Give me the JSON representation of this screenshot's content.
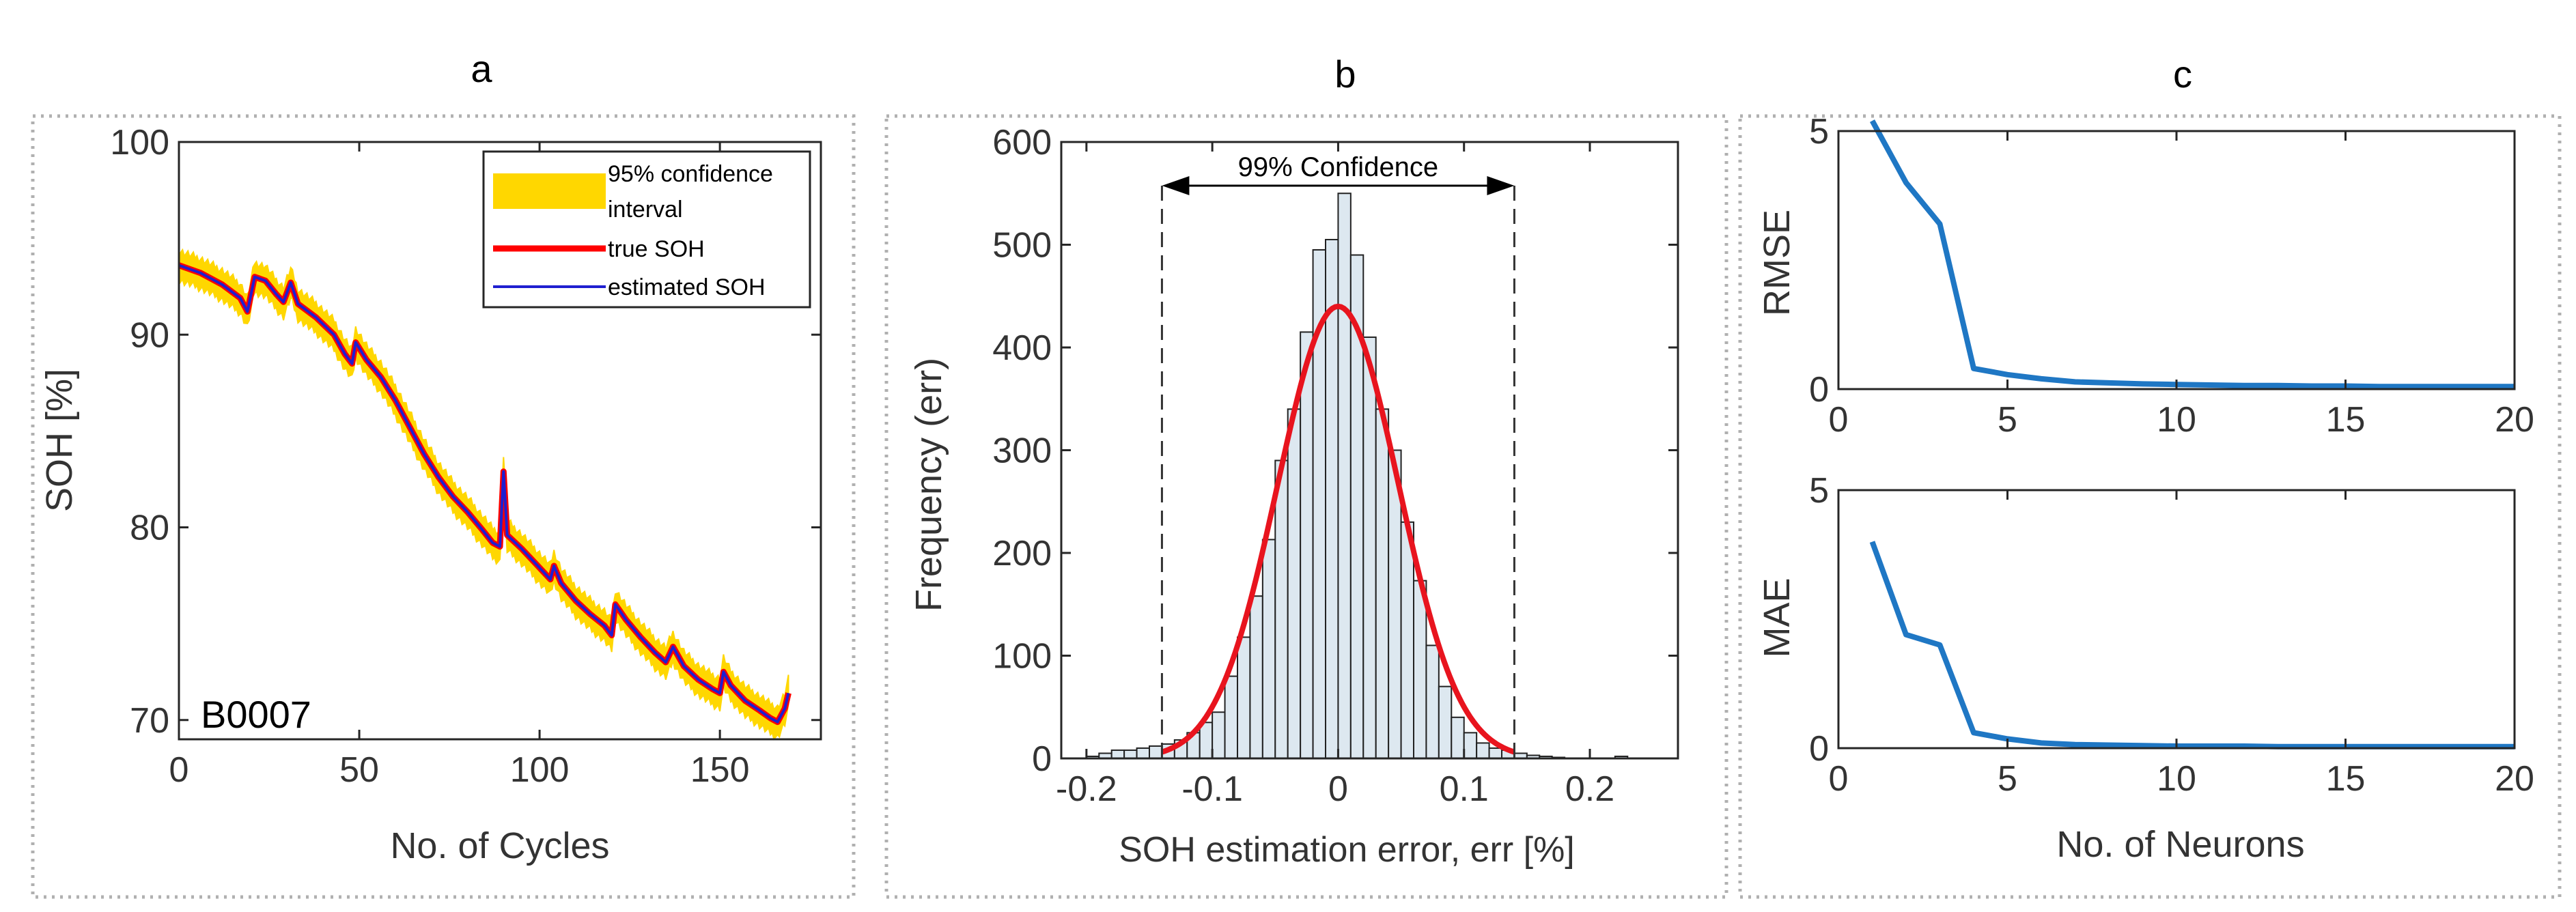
{
  "colors": {
    "confidence_band": "#FFD700",
    "true_soh": "#FF0000",
    "estimated_soh": "#1F1FD0",
    "histogram_fill": "#DDE8F0",
    "gauss_fit": "#E8141E",
    "neuron_line": "#1F77C4",
    "panel_border": "#B0B0B0"
  },
  "panels": {
    "a": {
      "label": "a",
      "battery_id": "B0007"
    },
    "b": {
      "label": "b",
      "annotation": "99% Confidence"
    },
    "c": {
      "label": "c"
    }
  },
  "chart_data": [
    {
      "id": "soh-vs-cycles",
      "type": "line",
      "xlabel": "No. of Cycles",
      "ylabel": "SOH [%]",
      "xlim": [
        0,
        178
      ],
      "ylim": [
        69,
        100
      ],
      "xticks": [
        0,
        50,
        100,
        150
      ],
      "yticks": [
        70,
        80,
        90,
        100
      ],
      "legend_position": "top-right",
      "legend": [
        "95% confidence",
        "interval",
        "true SOH",
        "estimated SOH"
      ],
      "confidence_halfwidth": 0.9,
      "series": [
        {
          "name": "true SOH",
          "points": [
            [
              0,
              93.6
            ],
            [
              6,
              93.2
            ],
            [
              12,
              92.6
            ],
            [
              17,
              91.9
            ],
            [
              19,
              91.2
            ],
            [
              21,
              93.0
            ],
            [
              24,
              92.8
            ],
            [
              27,
              92.1
            ],
            [
              29,
              91.7
            ],
            [
              31,
              92.7
            ],
            [
              33,
              91.6
            ],
            [
              38,
              90.9
            ],
            [
              43,
              90.0
            ],
            [
              46,
              89.0
            ],
            [
              48,
              88.5
            ],
            [
              49,
              89.6
            ],
            [
              52,
              88.7
            ],
            [
              56,
              87.8
            ],
            [
              60,
              86.6
            ],
            [
              64,
              85.2
            ],
            [
              68,
              83.8
            ],
            [
              72,
              82.6
            ],
            [
              76,
              81.6
            ],
            [
              80,
              80.8
            ],
            [
              84,
              79.9
            ],
            [
              87,
              79.2
            ],
            [
              89,
              79.0
            ],
            [
              90,
              82.9
            ],
            [
              91,
              79.6
            ],
            [
              95,
              78.9
            ],
            [
              99,
              78.1
            ],
            [
              103,
              77.3
            ],
            [
              104,
              78.0
            ],
            [
              106,
              77.1
            ],
            [
              110,
              76.2
            ],
            [
              114,
              75.5
            ],
            [
              118,
              74.9
            ],
            [
              120,
              74.4
            ],
            [
              121,
              76.0
            ],
            [
              124,
              75.2
            ],
            [
              128,
              74.3
            ],
            [
              132,
              73.5
            ],
            [
              135,
              73.0
            ],
            [
              137,
              73.8
            ],
            [
              140,
              72.8
            ],
            [
              144,
              72.1
            ],
            [
              148,
              71.6
            ],
            [
              150,
              71.4
            ],
            [
              151,
              72.5
            ],
            [
              153,
              71.8
            ],
            [
              157,
              71.0
            ],
            [
              161,
              70.5
            ],
            [
              164,
              70.1
            ],
            [
              166,
              69.9
            ],
            [
              168,
              70.6
            ],
            [
              169,
              71.4
            ]
          ]
        },
        {
          "name": "estimated SOH",
          "points": [
            [
              0,
              93.6
            ],
            [
              6,
              93.2
            ],
            [
              12,
              92.6
            ],
            [
              17,
              91.9
            ],
            [
              19,
              91.2
            ],
            [
              21,
              93.0
            ],
            [
              24,
              92.8
            ],
            [
              27,
              92.1
            ],
            [
              29,
              91.7
            ],
            [
              31,
              92.7
            ],
            [
              33,
              91.6
            ],
            [
              38,
              90.9
            ],
            [
              43,
              90.0
            ],
            [
              46,
              89.0
            ],
            [
              48,
              88.5
            ],
            [
              49,
              89.6
            ],
            [
              52,
              88.7
            ],
            [
              56,
              87.8
            ],
            [
              60,
              86.6
            ],
            [
              64,
              85.2
            ],
            [
              68,
              83.8
            ],
            [
              72,
              82.6
            ],
            [
              76,
              81.6
            ],
            [
              80,
              80.8
            ],
            [
              84,
              79.9
            ],
            [
              87,
              79.2
            ],
            [
              89,
              79.0
            ],
            [
              90,
              82.9
            ],
            [
              91,
              79.6
            ],
            [
              95,
              78.9
            ],
            [
              99,
              78.1
            ],
            [
              103,
              77.3
            ],
            [
              104,
              78.0
            ],
            [
              106,
              77.1
            ],
            [
              110,
              76.2
            ],
            [
              114,
              75.5
            ],
            [
              118,
              74.9
            ],
            [
              120,
              74.4
            ],
            [
              121,
              76.0
            ],
            [
              124,
              75.2
            ],
            [
              128,
              74.3
            ],
            [
              132,
              73.5
            ],
            [
              135,
              73.0
            ],
            [
              137,
              73.8
            ],
            [
              140,
              72.8
            ],
            [
              144,
              72.1
            ],
            [
              148,
              71.6
            ],
            [
              150,
              71.4
            ],
            [
              151,
              72.5
            ],
            [
              153,
              71.8
            ],
            [
              157,
              71.0
            ],
            [
              161,
              70.5
            ],
            [
              164,
              70.1
            ],
            [
              166,
              69.9
            ],
            [
              168,
              70.6
            ],
            [
              169,
              71.4
            ]
          ]
        }
      ]
    },
    {
      "id": "error-histogram",
      "type": "bar",
      "xlabel": "SOH estimation error, err [%]",
      "ylabel": "Frequency (err)",
      "xlim": [
        -0.22,
        0.27
      ],
      "ylim": [
        0,
        600
      ],
      "xticks": [
        -0.2,
        -0.1,
        0,
        0.1,
        0.2
      ],
      "yticks": [
        0,
        100,
        200,
        300,
        400,
        500,
        600
      ],
      "bin_width": 0.01,
      "bin_starts": [
        -0.2,
        -0.19,
        -0.18,
        -0.17,
        -0.16,
        -0.15,
        -0.14,
        -0.13,
        -0.12,
        -0.11,
        -0.1,
        -0.09,
        -0.08,
        -0.07,
        -0.06,
        -0.05,
        -0.04,
        -0.03,
        -0.02,
        -0.01,
        0.0,
        0.01,
        0.02,
        0.03,
        0.04,
        0.05,
        0.06,
        0.07,
        0.08,
        0.09,
        0.1,
        0.11,
        0.12,
        0.13,
        0.14,
        0.15,
        0.16,
        0.17,
        0.18,
        0.19,
        0.2,
        0.21,
        0.22
      ],
      "counts": [
        2,
        5,
        8,
        8,
        10,
        12,
        14,
        18,
        25,
        35,
        45,
        80,
        118,
        158,
        213,
        290,
        340,
        415,
        495,
        505,
        550,
        490,
        410,
        340,
        300,
        230,
        173,
        110,
        70,
        40,
        25,
        15,
        10,
        8,
        5,
        3,
        2,
        1,
        0,
        0,
        0,
        0,
        2
      ],
      "fit": {
        "type": "gaussian",
        "mean": 0.0,
        "std": 0.048,
        "peak": 440
      },
      "confidence_bounds": [
        -0.14,
        0.14
      ],
      "confidence_label": "99% Confidence"
    },
    {
      "id": "rmse-vs-neurons",
      "type": "line",
      "xlabel": "",
      "ylabel": "RMSE",
      "xlim": [
        0,
        20
      ],
      "ylim": [
        0,
        5
      ],
      "xticks": [
        0,
        5,
        10,
        15,
        20
      ],
      "yticks": [
        0,
        5
      ],
      "x": [
        1,
        2,
        3,
        4,
        5,
        6,
        7,
        8,
        9,
        10,
        11,
        12,
        13,
        14,
        15,
        16,
        17,
        18,
        19,
        20
      ],
      "values": [
        5.2,
        4.0,
        3.2,
        0.4,
        0.28,
        0.2,
        0.14,
        0.12,
        0.1,
        0.09,
        0.08,
        0.07,
        0.07,
        0.06,
        0.06,
        0.05,
        0.05,
        0.05,
        0.05,
        0.05
      ]
    },
    {
      "id": "mae-vs-neurons",
      "type": "line",
      "xlabel": "No. of Neurons",
      "ylabel": "MAE",
      "xlim": [
        0,
        20
      ],
      "ylim": [
        0,
        5
      ],
      "xticks": [
        0,
        5,
        10,
        15,
        20
      ],
      "yticks": [
        0,
        5
      ],
      "x": [
        1,
        2,
        3,
        4,
        5,
        6,
        7,
        8,
        9,
        10,
        11,
        12,
        13,
        14,
        15,
        16,
        17,
        18,
        19,
        20
      ],
      "values": [
        4.0,
        2.2,
        2.0,
        0.3,
        0.18,
        0.1,
        0.07,
        0.06,
        0.05,
        0.04,
        0.04,
        0.04,
        0.03,
        0.03,
        0.03,
        0.03,
        0.03,
        0.03,
        0.03,
        0.03
      ]
    }
  ]
}
